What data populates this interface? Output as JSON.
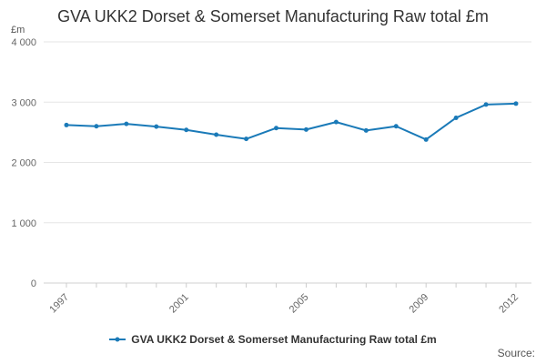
{
  "chart_data": {
    "type": "line",
    "title": "GVA UKK2 Dorset & Somerset Manufacturing Raw total £m",
    "ylabel": "£m",
    "xlabel": "",
    "x": [
      1997,
      1998,
      1999,
      2000,
      2001,
      2002,
      2003,
      2004,
      2005,
      2006,
      2007,
      2008,
      2009,
      2010,
      2011,
      2012
    ],
    "x_tick_labels": [
      "1997",
      "2001",
      "2005",
      "2009",
      "2012"
    ],
    "x_tick_values": [
      1997,
      2001,
      2005,
      2009,
      2012
    ],
    "y_tick_labels": [
      "0",
      "1 000",
      "2 000",
      "3 000",
      "4 000"
    ],
    "y_tick_values": [
      0,
      1000,
      2000,
      3000,
      4000
    ],
    "ylim": [
      0,
      4000
    ],
    "xlim": [
      1997,
      2012
    ],
    "grid": true,
    "legend_position": "bottom",
    "series": [
      {
        "name": "GVA UKK2 Dorset & Somerset Manufacturing Raw total £m",
        "color": "#1a7ab8",
        "values": [
          2620,
          2600,
          2640,
          2595,
          2540,
          2460,
          2390,
          2570,
          2545,
          2670,
          2530,
          2600,
          2380,
          2740,
          2960,
          2975
        ]
      }
    ]
  },
  "source_label": "Source:"
}
